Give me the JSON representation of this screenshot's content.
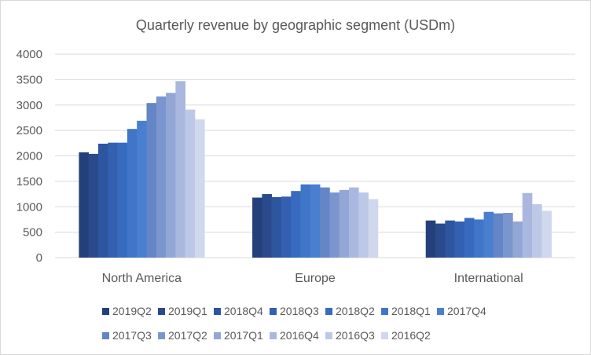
{
  "chart_data": {
    "type": "bar",
    "title": "Quarterly revenue by geographic segment (USDm)",
    "xlabel": "",
    "ylabel": "",
    "ylim": [
      0,
      4000
    ],
    "yticks": [
      0,
      500,
      1000,
      1500,
      2000,
      2500,
      3000,
      3500,
      4000
    ],
    "grid": true,
    "legend_position": "bottom",
    "categories": [
      "North America",
      "Europe",
      "International"
    ],
    "series": [
      {
        "name": "2019Q2",
        "color": "#24407c",
        "values": [
          2070,
          1180,
          730
        ]
      },
      {
        "name": "2019Q1",
        "color": "#2a4a8c",
        "values": [
          2040,
          1250,
          670
        ]
      },
      {
        "name": "2018Q4",
        "color": "#2e55a0",
        "values": [
          2240,
          1190,
          730
        ]
      },
      {
        "name": "2018Q3",
        "color": "#3360b0",
        "values": [
          2260,
          1200,
          710
        ]
      },
      {
        "name": "2018Q2",
        "color": "#386bbf",
        "values": [
          2260,
          1310,
          780
        ]
      },
      {
        "name": "2018Q1",
        "color": "#3f76c8",
        "values": [
          2530,
          1440,
          750
        ]
      },
      {
        "name": "2017Q4",
        "color": "#4a7fd0",
        "values": [
          2690,
          1440,
          900
        ]
      },
      {
        "name": "2017Q3",
        "color": "#6485c6",
        "values": [
          3040,
          1380,
          870
        ]
      },
      {
        "name": "2017Q2",
        "color": "#7b96ce",
        "values": [
          3170,
          1280,
          880
        ]
      },
      {
        "name": "2017Q1",
        "color": "#93a7d6",
        "values": [
          3240,
          1330,
          710
        ]
      },
      {
        "name": "2016Q4",
        "color": "#aab8df",
        "values": [
          3470,
          1380,
          1270
        ]
      },
      {
        "name": "2016Q3",
        "color": "#bdc8e6",
        "values": [
          2910,
          1280,
          1050
        ]
      },
      {
        "name": "2016Q2",
        "color": "#d0d8ee",
        "values": [
          2720,
          1150,
          920
        ]
      }
    ]
  }
}
